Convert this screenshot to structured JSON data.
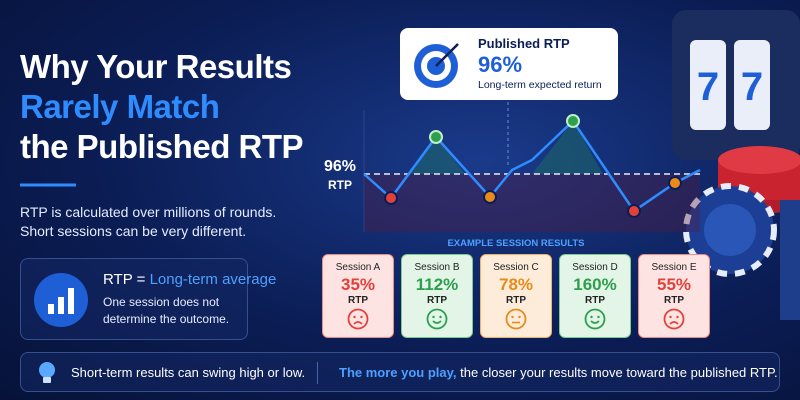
{
  "header": {
    "title_lines": [
      "Why Your Results",
      "Rarely Match",
      "the Published RTP"
    ],
    "description_lines": [
      "RTP is calculated over millions of rounds.",
      "Short sessions can be very different."
    ]
  },
  "info_box": {
    "term": "RTP =",
    "definition": "Long-term average",
    "text": "One session does not determine the outcome."
  },
  "published_rtp": {
    "label": "Published RTP",
    "value": "96%",
    "caption": "Long-term expected return"
  },
  "chart": {
    "reference_value": "96%",
    "reference_label": "RTP",
    "section_title": "EXAMPLE SESSION RESULTS"
  },
  "sessions": [
    {
      "name": "Session A",
      "value": "35%",
      "unit": "RTP"
    },
    {
      "name": "Session B",
      "value": "112%",
      "unit": "RTP"
    },
    {
      "name": "Session C",
      "value": "78%",
      "unit": "RTP"
    },
    {
      "name": "Session D",
      "value": "160%",
      "unit": "RTP"
    },
    {
      "name": "Session E",
      "value": "55%",
      "unit": "RTP"
    }
  ],
  "footer": {
    "note": "Short-term results can swing high or low.",
    "emphasis": "The more you play,",
    "text": "the closer your results move toward the published RTP."
  }
}
